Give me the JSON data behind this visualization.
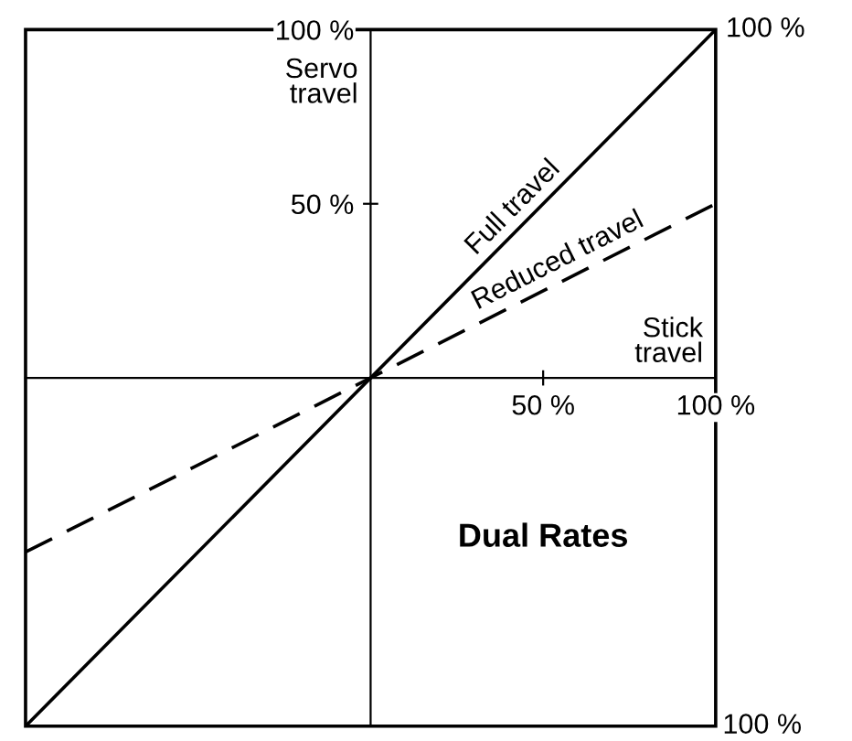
{
  "chart_data": {
    "type": "line",
    "title": "Dual Rates",
    "xlabel": "Stick travel",
    "ylabel": "Servo travel",
    "x": [
      -100,
      100
    ],
    "series": [
      {
        "name": "Full travel",
        "color": "#000000",
        "values": [
          -100,
          100
        ],
        "line_style": "solid"
      },
      {
        "name": "Reduced travel",
        "color": "#000000",
        "values": [
          -50,
          50
        ],
        "line_style": "dashed"
      }
    ],
    "xlim": [
      -100,
      100
    ],
    "ylim": [
      -100,
      100
    ],
    "xticks": [
      {
        "value": 50,
        "label": "50 %"
      },
      {
        "value": 100,
        "label": "100 %"
      }
    ],
    "yticks": [
      {
        "value": 50,
        "label": "50 %"
      },
      {
        "value": 100,
        "label": "100 %"
      }
    ],
    "annotations": [
      {
        "text": "100 %",
        "x": 100,
        "y": 100
      },
      "100 %"
    ],
    "grid": false,
    "legend": false,
    "marker": "none"
  }
}
